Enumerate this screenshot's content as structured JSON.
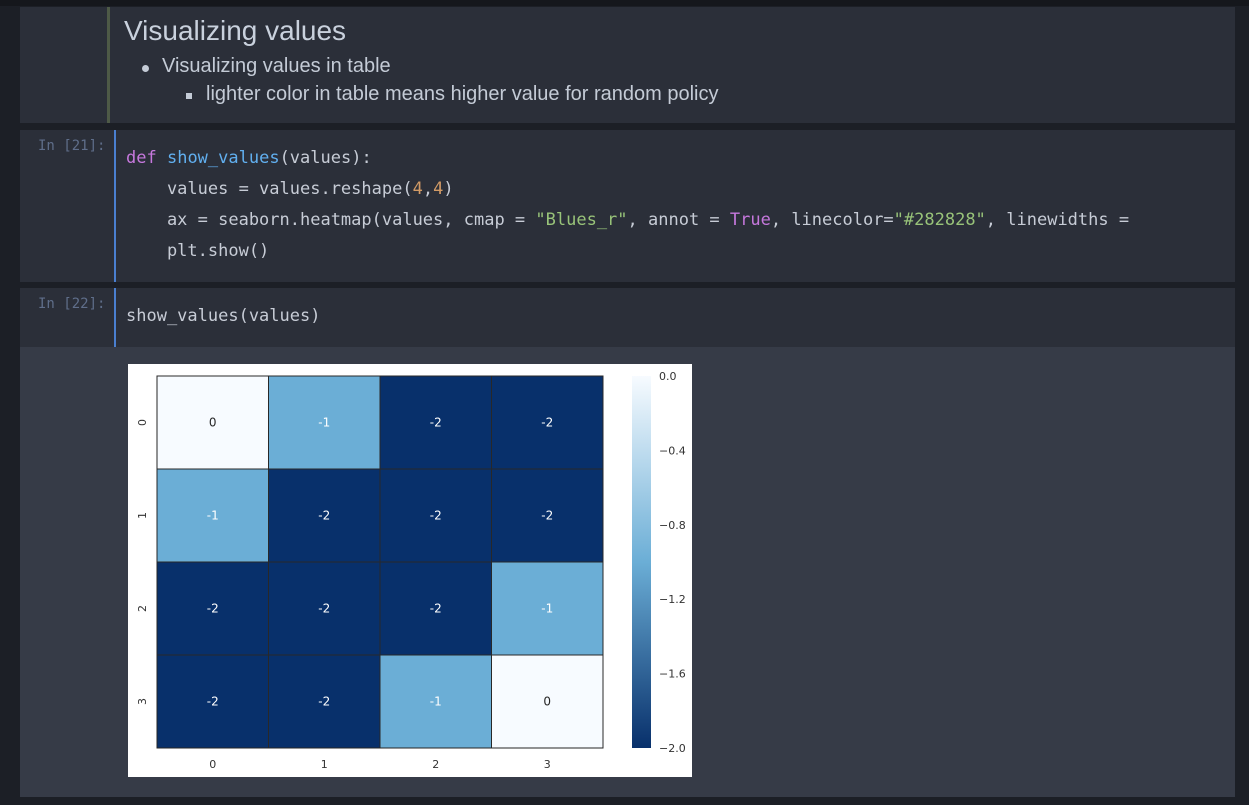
{
  "markdown_cell": {
    "title": "Visualizing values",
    "bullet_1": "Visualizing values in table",
    "bullet_2": "lighter color in table means higher value for random policy"
  },
  "cell_21": {
    "prompt": "In [21]:",
    "line1": {
      "kw": "def",
      "fn": "show_values",
      "rest": "(values):"
    },
    "line2": {
      "pre": "    values = values.reshape(",
      "n1": "4",
      "comma": ",",
      "n2": "4",
      "post": ")"
    },
    "line3": {
      "pre": "    ax = seaborn.heatmap(values, cmap = ",
      "str1": "\"Blues_r\"",
      "mid1": ", annot = ",
      "bool": "True",
      "mid2": ", linecolor=",
      "str2": "\"#282828\"",
      "post": ", linewidths ="
    },
    "line4": "    plt.show()"
  },
  "cell_22": {
    "prompt": "In [22]:",
    "line1": "show_values(values)"
  },
  "chart_data": {
    "type": "heatmap",
    "x_tick_labels": [
      "0",
      "1",
      "2",
      "3"
    ],
    "y_tick_labels": [
      "0",
      "1",
      "2",
      "3"
    ],
    "values": [
      [
        0,
        -1,
        -2,
        -2
      ],
      [
        -1,
        -2,
        -2,
        -2
      ],
      [
        -2,
        -2,
        -2,
        -1
      ],
      [
        -2,
        -2,
        -1,
        0
      ]
    ],
    "annotations": [
      [
        "0",
        "-1",
        "-2",
        "-2"
      ],
      [
        "-1",
        "-2",
        "-2",
        "-2"
      ],
      [
        "-2",
        "-2",
        "-2",
        "-1"
      ],
      [
        "-2",
        "-2",
        "-1",
        "0"
      ]
    ],
    "colormap": "Blues_r",
    "colors": {
      "light": "#f7fbff",
      "mid": "#6baed6",
      "dark": "#08306b"
    },
    "linecolor": "#282828",
    "colorbar": {
      "range": [
        -2.0,
        0.0
      ],
      "tick_labels": [
        "0.0",
        "−0.4",
        "−0.8",
        "−1.2",
        "−1.6",
        "−2.0"
      ]
    }
  }
}
